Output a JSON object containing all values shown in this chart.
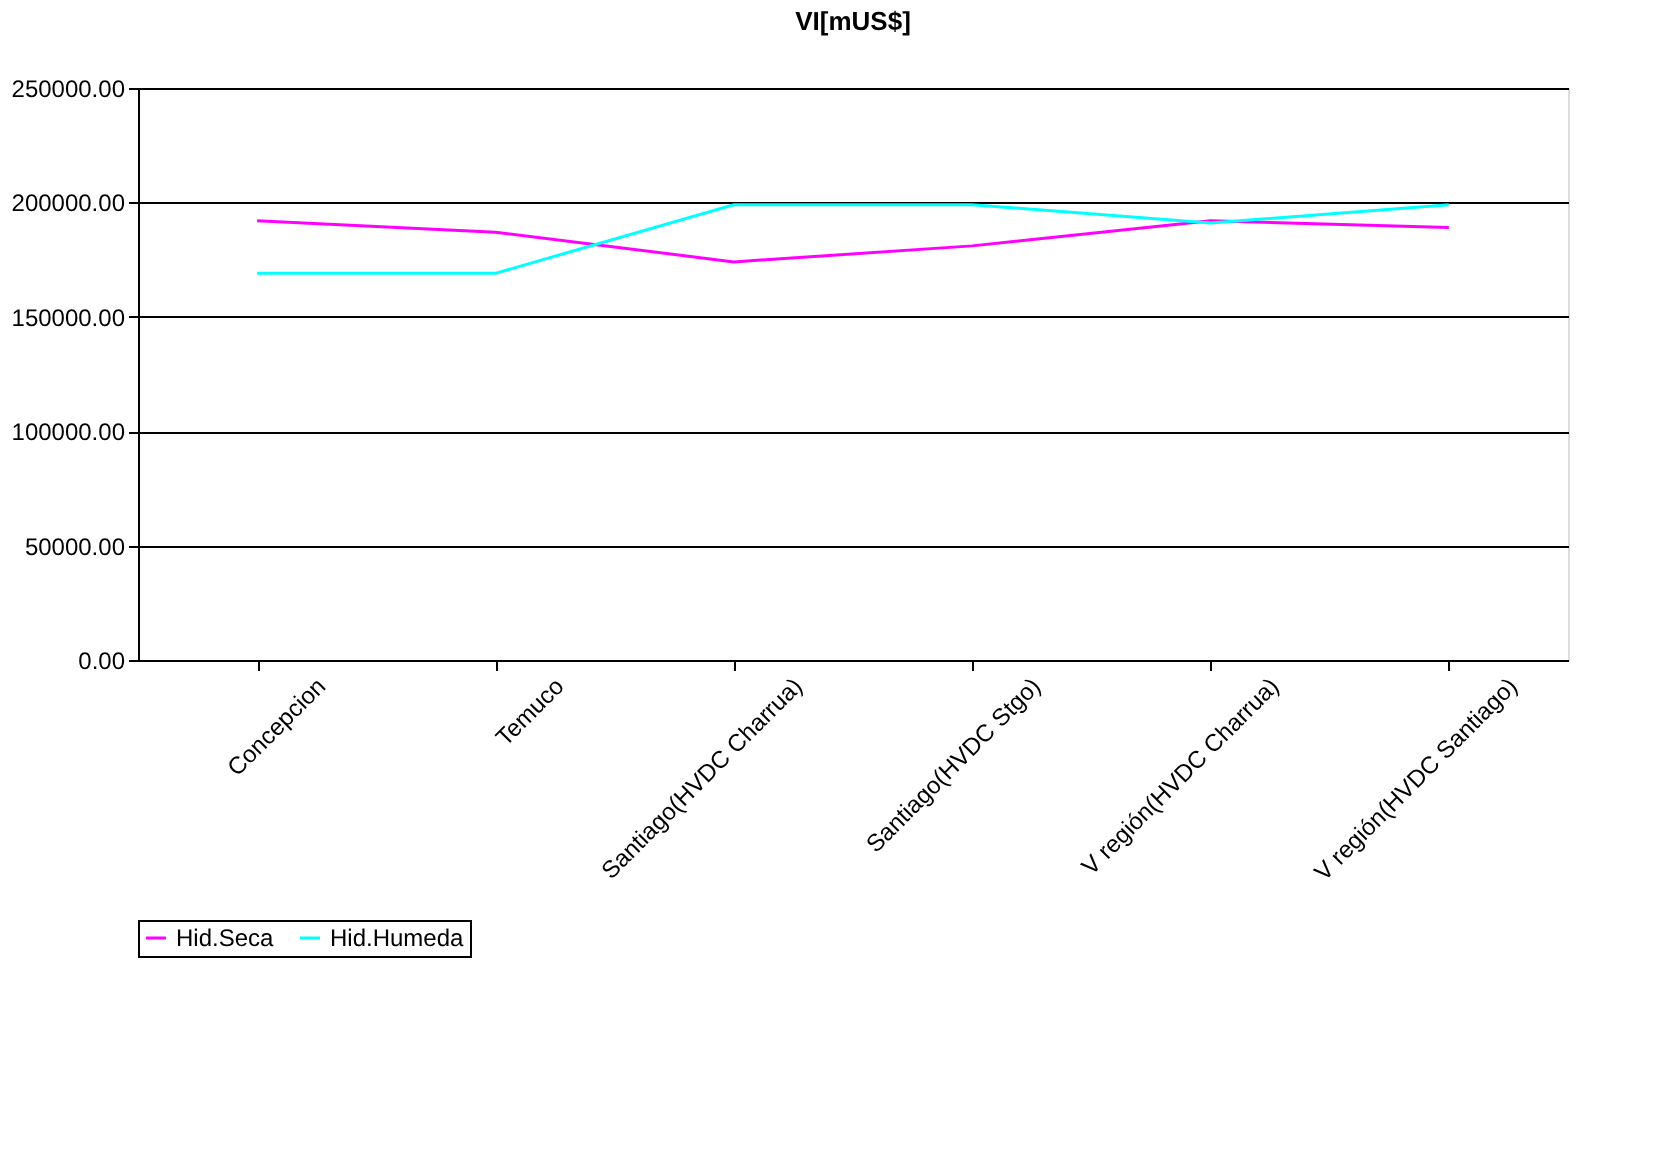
{
  "chart_data": {
    "type": "line",
    "title": "VI[mUS$]",
    "categories": [
      "Concepcion",
      "Temuco",
      "Santiago(HVDC Charrua)",
      "Santiago(HVDC Stgo)",
      "V región(HVDC Charrua)",
      "V región(HVDC Santiago)"
    ],
    "series": [
      {
        "name": "Hid.Seca",
        "color": "#ff00ff",
        "values": [
          192000,
          187000,
          174000,
          181000,
          192000,
          189000
        ]
      },
      {
        "name": "Hid.Humeda",
        "color": "#00ffff",
        "values": [
          169000,
          169000,
          199000,
          199000,
          191000,
          199000
        ]
      }
    ],
    "ylim": [
      0,
      250000
    ],
    "yticks": [
      {
        "value": 0,
        "label": "0.00"
      },
      {
        "value": 50000,
        "label": "50000.00"
      },
      {
        "value": 100000,
        "label": "100000.00"
      },
      {
        "value": 150000,
        "label": "150000.00"
      },
      {
        "value": 200000,
        "label": "200000.00"
      },
      {
        "value": 250000,
        "label": "250000.00"
      }
    ],
    "grid": "y",
    "legend": "bottom",
    "marker": "none",
    "line_style": "solid"
  }
}
